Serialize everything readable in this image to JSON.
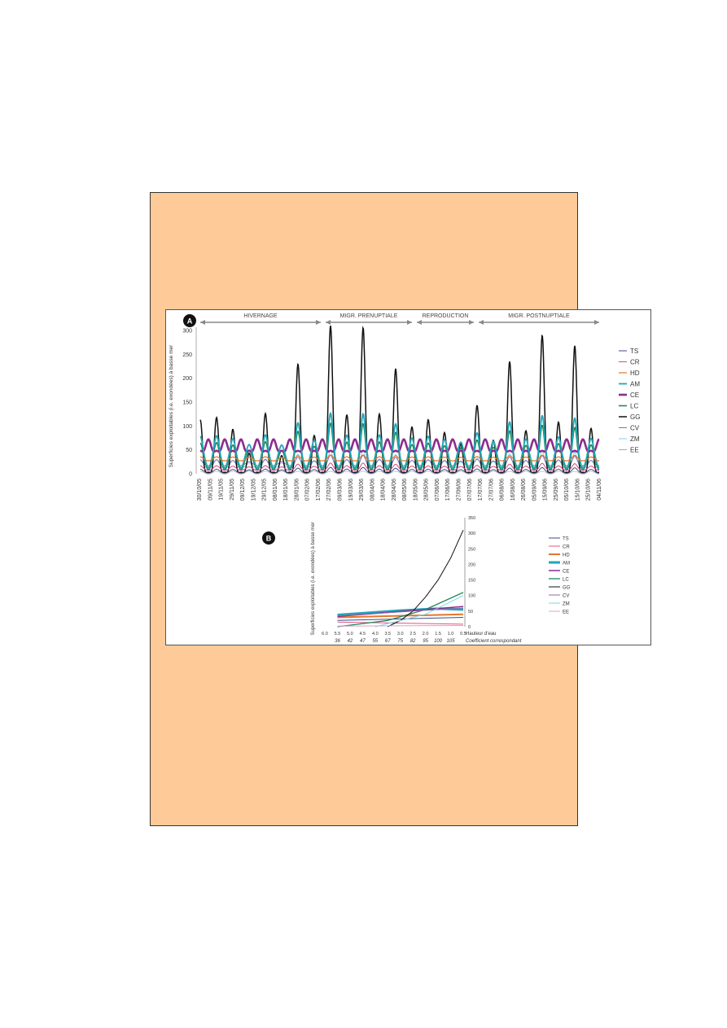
{
  "chart_data": [
    {
      "id": "A",
      "type": "line",
      "panel_label": "A",
      "ylabel": "Superficies exploitables (i.e. exondées) à basse mer",
      "ylim": [
        0,
        300
      ],
      "yticks": [
        "0",
        "50",
        "100",
        "150",
        "200",
        "250",
        "300"
      ],
      "grid": false,
      "legend_position": "right",
      "periods": [
        "HIVERNAGE",
        "MIGR. PRENUPTIALE",
        "REPRODUCTION",
        "MIGR. POSTNUPTIALE"
      ],
      "x": [
        "30/10/05",
        "09/11/05",
        "19/11/05",
        "29/11/05",
        "09/12/05",
        "19/12/05",
        "29/12/05",
        "08/01/06",
        "18/01/06",
        "28/01/06",
        "07/02/06",
        "17/02/06",
        "27/02/06",
        "09/03/06",
        "19/03/06",
        "29/03/06",
        "08/04/06",
        "18/04/06",
        "28/04/06",
        "08/05/06",
        "18/05/06",
        "28/05/06",
        "07/06/06",
        "17/06/06",
        "27/06/06",
        "07/07/06",
        "17/07/06",
        "27/07/06",
        "06/08/06",
        "16/08/06",
        "26/08/06",
        "05/09/06",
        "15/09/06",
        "25/09/06",
        "05/10/06",
        "15/10/06",
        "25/10/06",
        "04/11/06"
      ],
      "tide_peaks_GG": [
        115,
        120,
        95,
        45,
        128,
        40,
        232,
        82,
        312,
        125,
        308,
        127,
        222,
        100,
        115,
        88,
        65,
        145,
        72,
        237,
        92,
        292,
        110,
        270,
        97
      ],
      "series": [
        {
          "name": "TS",
          "color": "#3b4a8c",
          "base": 4,
          "amp_ratio": 0.02,
          "width": 1
        },
        {
          "name": "CR",
          "color": "#d9477b",
          "base": 10,
          "amp_ratio": 0.03,
          "width": 1
        },
        {
          "name": "HD",
          "color": "#e8742a",
          "base": 30,
          "amp_ratio": 0.02,
          "width": 1.2
        },
        {
          "name": "AM",
          "color": "#1fa7b8",
          "base": 50,
          "amp_ratio": 0.35,
          "width": 1.8
        },
        {
          "name": "CE",
          "color": "#8e2b8e",
          "base": 55,
          "amp_ratio": 0.06,
          "width": 2.6
        },
        {
          "name": "LC",
          "color": "#1e8a5a",
          "base": 40,
          "amp_ratio": 0.3,
          "width": 1.6
        },
        {
          "name": "GG",
          "color": "#111111",
          "base": 5,
          "amp_ratio": 1.0,
          "width": 1.5
        },
        {
          "name": "CV",
          "color": "#8a6bb0",
          "base": 20,
          "amp_ratio": 0.05,
          "width": 1
        },
        {
          "name": "ZM",
          "color": "#7fd3ea",
          "base": 15,
          "amp_ratio": 0.1,
          "width": 1
        },
        {
          "name": "EE",
          "color": "#aaaaaa",
          "base": 2,
          "amp_ratio": 0.0,
          "width": 0.6
        }
      ]
    },
    {
      "id": "B",
      "type": "line",
      "panel_label": "B",
      "ylabel": "Superficies exploitables (i.e. exondées) à basse mer",
      "xlabel": "Hauteur d'eau",
      "x2label": "Coefficient correspondant",
      "ylim": [
        0,
        350
      ],
      "yticks": [
        "0",
        "50",
        "100",
        "150",
        "200",
        "250",
        "300",
        "350"
      ],
      "x": [
        "6.0",
        "5.5",
        "5.0",
        "4.5",
        "4.0",
        "3.5",
        "3.0",
        "2.5",
        "2.0",
        "1.5",
        "1.0",
        "0.5"
      ],
      "coefficients": [
        "36",
        "42",
        "47",
        "55",
        "67",
        "75",
        "82",
        "95",
        "100",
        "105"
      ],
      "legend_position": "right",
      "series": [
        {
          "name": "TS",
          "color": "#3b4a8c",
          "width": 1,
          "points": [
            [
              5.5,
              20
            ],
            [
              0.5,
              30
            ]
          ]
        },
        {
          "name": "CR",
          "color": "#e0567f",
          "width": 1,
          "points": [
            [
              5.5,
              15
            ],
            [
              0.5,
              8
            ]
          ]
        },
        {
          "name": "HD",
          "color": "#e8742a",
          "width": 2,
          "points": [
            [
              5.5,
              30
            ],
            [
              0.5,
              40
            ]
          ]
        },
        {
          "name": "AM",
          "color": "#1fa7b8",
          "width": 3,
          "points": [
            [
              5.5,
              38
            ],
            [
              3.0,
              52
            ],
            [
              1.5,
              58
            ],
            [
              0.5,
              55
            ]
          ]
        },
        {
          "name": "CE",
          "color": "#8e2b8e",
          "width": 1.5,
          "points": [
            [
              5.5,
              33
            ],
            [
              0.5,
              65
            ]
          ]
        },
        {
          "name": "LC",
          "color": "#1e8a5a",
          "width": 1.3,
          "points": [
            [
              5.5,
              0
            ],
            [
              3.5,
              20
            ],
            [
              2.0,
              55
            ],
            [
              0.5,
              110
            ]
          ]
        },
        {
          "name": "GG",
          "color": "#111111",
          "width": 1,
          "points": [
            [
              3.5,
              0
            ],
            [
              3.0,
              20
            ],
            [
              2.5,
              50
            ],
            [
              2.0,
              95
            ],
            [
              1.5,
              150
            ],
            [
              1.0,
              220
            ],
            [
              0.5,
              310
            ]
          ]
        },
        {
          "name": "CV",
          "color": "#8a6bb0",
          "width": 1,
          "points": [
            [
              5.5,
              35
            ],
            [
              0.5,
              60
            ]
          ]
        },
        {
          "name": "ZM",
          "color": "#7fd3ea",
          "width": 1,
          "points": [
            [
              4.0,
              0
            ],
            [
              2.0,
              40
            ],
            [
              0.5,
              100
            ]
          ]
        },
        {
          "name": "EE",
          "color": "#e0a0c8",
          "width": 1,
          "points": [
            [
              5.5,
              2
            ],
            [
              0.5,
              4
            ]
          ]
        }
      ]
    }
  ]
}
